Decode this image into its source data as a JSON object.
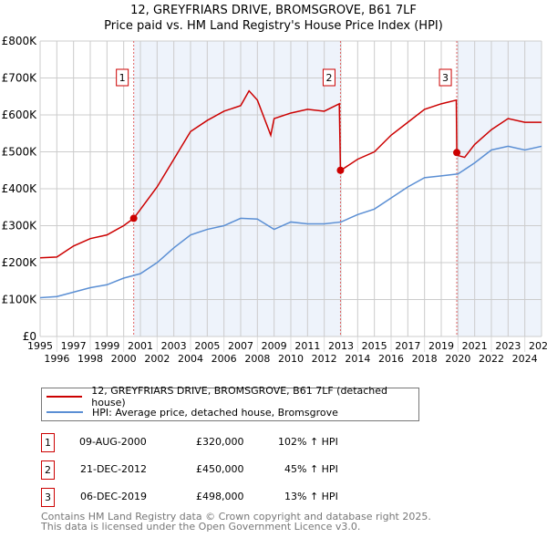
{
  "title": "12, GREYFRIARS DRIVE, BROMSGROVE, B61 7LF",
  "subtitle": "Price paid vs. HM Land Registry's House Price Index (HPI)",
  "legend": {
    "property": "12, GREYFRIARS DRIVE, BROMSGROVE, B61 7LF (detached house)",
    "hpi": "HPI: Average price, detached house, Bromsgrove"
  },
  "sales": [
    {
      "n": "1",
      "date": "09-AUG-2000",
      "price": "£320,000",
      "hpi": "102% ↑ HPI"
    },
    {
      "n": "2",
      "date": "21-DEC-2012",
      "price": "£450,000",
      "hpi": "45% ↑ HPI"
    },
    {
      "n": "3",
      "date": "06-DEC-2019",
      "price": "£498,000",
      "hpi": "13% ↑ HPI"
    }
  ],
  "footer": [
    "Contains HM Land Registry data © Crown copyright and database right 2025.",
    "This data is licensed under the Open Government Licence v3.0."
  ],
  "colors": {
    "property": "#cc0000",
    "hpi": "#5b8fd4",
    "shade": "#eef3fb"
  },
  "chart_data": {
    "type": "line",
    "xlim": [
      1995,
      2025
    ],
    "ylim": [
      0,
      800000
    ],
    "yticks": [
      0,
      100000,
      200000,
      300000,
      400000,
      500000,
      600000,
      700000,
      800000
    ],
    "yticklabels": [
      "£0",
      "£100K",
      "£200K",
      "£300K",
      "£400K",
      "£500K",
      "£600K",
      "£700K",
      "£800K"
    ],
    "xticks": [
      1995,
      1996,
      1997,
      1998,
      1999,
      2000,
      2001,
      2002,
      2003,
      2004,
      2005,
      2006,
      2007,
      2008,
      2009,
      2010,
      2011,
      2012,
      2013,
      2014,
      2015,
      2016,
      2017,
      2018,
      2019,
      2020,
      2021,
      2022,
      2023,
      2024,
      2025
    ],
    "markers": [
      {
        "label": "1",
        "x": 2000.6,
        "y": 320000
      },
      {
        "label": "2",
        "x": 2012.97,
        "y": 450000
      },
      {
        "label": "3",
        "x": 2019.93,
        "y": 498000
      }
    ],
    "series": [
      {
        "name": "property",
        "x": [
          1995,
          1996,
          1997,
          1998,
          1999,
          2000,
          2000.6,
          2001,
          2002,
          2003,
          2004,
          2005,
          2006,
          2007,
          2007.5,
          2008,
          2008.8,
          2009,
          2010,
          2011,
          2012,
          2012.9,
          2012.97,
          2013,
          2014,
          2015,
          2016,
          2017,
          2018,
          2019,
          2019.9,
          2019.93,
          2020,
          2020.4,
          2021,
          2022,
          2023,
          2024,
          2025
        ],
        "y": [
          213000,
          215000,
          245000,
          265000,
          275000,
          300000,
          320000,
          344000,
          405000,
          480000,
          555000,
          585000,
          610000,
          625000,
          665000,
          640000,
          545000,
          590000,
          605000,
          615000,
          610000,
          630000,
          450000,
          450000,
          480000,
          500000,
          545000,
          580000,
          615000,
          630000,
          640000,
          498000,
          490000,
          485000,
          520000,
          560000,
          590000,
          580000,
          580000
        ]
      },
      {
        "name": "hpi",
        "x": [
          1995,
          1996,
          1997,
          1998,
          1999,
          2000,
          2001,
          2002,
          2003,
          2004,
          2005,
          2006,
          2007,
          2008,
          2009,
          2010,
          2011,
          2012,
          2013,
          2014,
          2015,
          2016,
          2017,
          2018,
          2019,
          2020,
          2021,
          2022,
          2023,
          2024,
          2025
        ],
        "y": [
          105000,
          108000,
          120000,
          132000,
          140000,
          158000,
          170000,
          200000,
          240000,
          275000,
          290000,
          300000,
          320000,
          318000,
          290000,
          310000,
          305000,
          305000,
          310000,
          330000,
          345000,
          375000,
          405000,
          430000,
          435000,
          440000,
          470000,
          505000,
          515000,
          505000,
          515000
        ]
      }
    ]
  }
}
